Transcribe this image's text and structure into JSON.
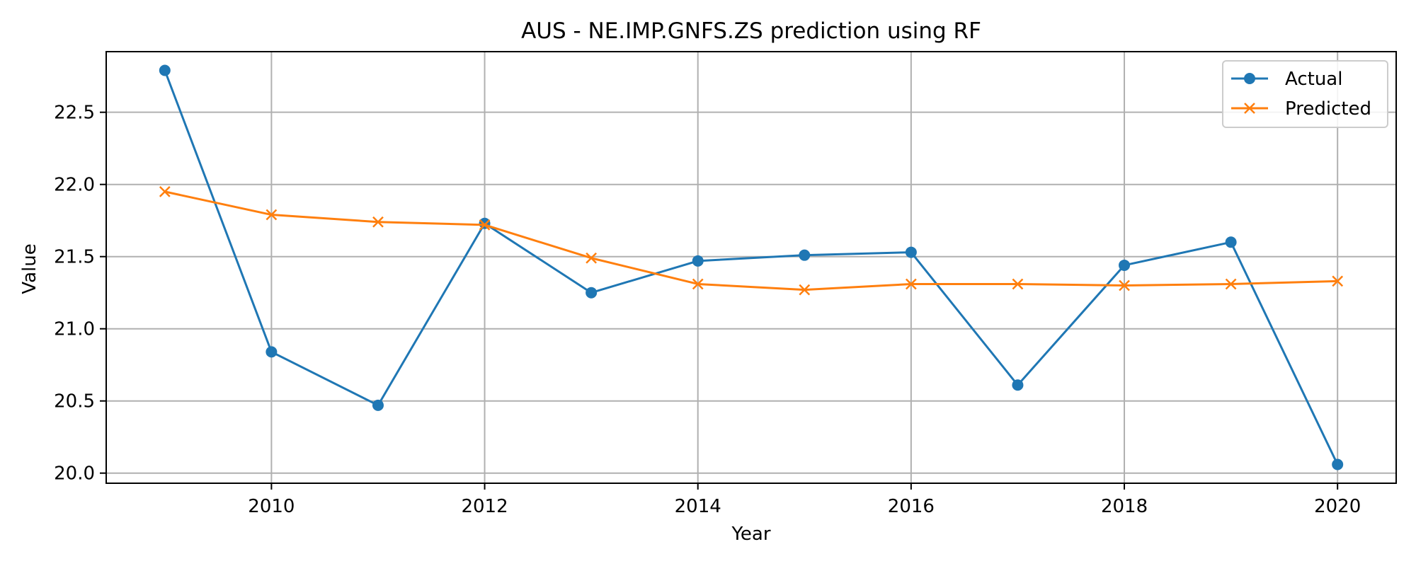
{
  "chart_data": {
    "type": "line",
    "title": "AUS - NE.IMP.GNFS.ZS prediction using RF",
    "xlabel": "Year",
    "ylabel": "Value",
    "x": [
      2009,
      2010,
      2011,
      2012,
      2013,
      2014,
      2015,
      2016,
      2017,
      2018,
      2019,
      2020
    ],
    "series": [
      {
        "name": "Actual",
        "color": "#1f77b4",
        "marker": "circle",
        "values": [
          22.79,
          20.84,
          20.47,
          21.73,
          21.25,
          21.47,
          21.51,
          21.53,
          20.61,
          21.44,
          21.6,
          20.06
        ]
      },
      {
        "name": "Predicted",
        "color": "#ff7f0e",
        "marker": "x",
        "values": [
          21.95,
          21.79,
          21.74,
          21.72,
          21.49,
          21.31,
          21.27,
          21.31,
          21.31,
          21.3,
          21.31,
          21.33
        ]
      }
    ],
    "xticks": [
      2010,
      2012,
      2014,
      2016,
      2018,
      2020
    ],
    "yticks": [
      20.0,
      20.5,
      21.0,
      21.5,
      22.0,
      22.5
    ],
    "xlim": [
      2008.45,
      2020.55
    ],
    "ylim": [
      19.93,
      22.92
    ],
    "grid": true,
    "legend_position": "top-right"
  }
}
